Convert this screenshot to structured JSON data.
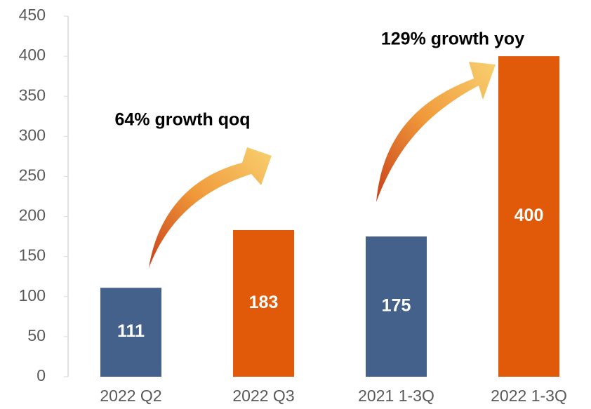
{
  "chart_data": {
    "type": "bar",
    "categories": [
      "2022 Q2",
      "2022 Q3",
      "2021 1-3Q",
      "2022 1-3Q"
    ],
    "values": [
      111,
      183,
      175,
      400
    ],
    "colors": [
      "#44618c",
      "#e05a0a",
      "#44618c",
      "#e05a0a"
    ],
    "ylim": [
      0,
      450
    ],
    "yticks": [
      0,
      50,
      100,
      150,
      200,
      250,
      300,
      350,
      400,
      450
    ],
    "annotations": [
      "64% growth qoq",
      "129% growth yoy"
    ]
  }
}
